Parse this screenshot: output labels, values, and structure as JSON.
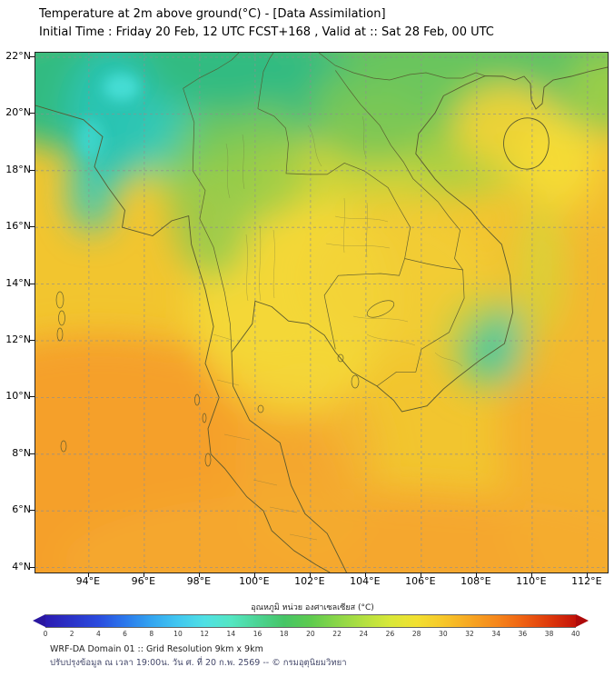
{
  "header": {
    "title": "Temperature at 2m above ground(°C) - [Data Assimilation]",
    "subtitle": "Initial Time : Friday 20 Feb, 12 UTC FCST+168 , Valid at :: Sat 28 Feb, 00 UTC"
  },
  "map": {
    "lat_ticks": [
      "22°N",
      "20°N",
      "18°N",
      "16°N",
      "14°N",
      "12°N",
      "10°N",
      "8°N",
      "6°N",
      "4°N"
    ],
    "lon_ticks": [
      "94°E",
      "96°E",
      "98°E",
      "100°E",
      "102°E",
      "104°E",
      "106°E",
      "108°E",
      "110°E",
      "112°E"
    ]
  },
  "colorbar": {
    "label": "อุณหภูมิ หน่วย องศาเซลเซียส (°C)",
    "ticks": [
      "0",
      "2",
      "4",
      "6",
      "8",
      "10",
      "12",
      "14",
      "16",
      "18",
      "20",
      "22",
      "24",
      "26",
      "28",
      "30",
      "32",
      "34",
      "36",
      "38",
      "40"
    ],
    "min": 0,
    "max": 40,
    "under_color": "#2A17A0",
    "over_color": "#AE0A0A",
    "stops": [
      {
        "value": 0,
        "color": "#2B1BB2"
      },
      {
        "value": 4,
        "color": "#2A4BDE"
      },
      {
        "value": 6,
        "color": "#2B78EC"
      },
      {
        "value": 8,
        "color": "#33A5F0"
      },
      {
        "value": 10,
        "color": "#41C7F0"
      },
      {
        "value": 12,
        "color": "#4FE0E4"
      },
      {
        "value": 14,
        "color": "#53E6C2"
      },
      {
        "value": 16,
        "color": "#4CD494"
      },
      {
        "value": 18,
        "color": "#46C566"
      },
      {
        "value": 20,
        "color": "#5ECB4F"
      },
      {
        "value": 22,
        "color": "#8AD648"
      },
      {
        "value": 24,
        "color": "#B3E040"
      },
      {
        "value": 26,
        "color": "#D9E838"
      },
      {
        "value": 28,
        "color": "#F2E030"
      },
      {
        "value": 30,
        "color": "#F7C729"
      },
      {
        "value": 32,
        "color": "#F7A722"
      },
      {
        "value": 34,
        "color": "#F6871B"
      },
      {
        "value": 36,
        "color": "#EF6112"
      },
      {
        "value": 38,
        "color": "#DE390B"
      },
      {
        "value": 40,
        "color": "#C41208"
      }
    ]
  },
  "footer": {
    "line1": "WRF-DA Domain 01 :: Grid Resolution 9km x 9km",
    "line2": "ปรับปรุงข้อมูล ณ เวลา 19:00น. วัน ศ. ที่ 20 ก.พ. 2569 -- © กรมอุตุนิยมวิทยา"
  },
  "chart_data": {
    "type": "heatmap",
    "title": "Temperature at 2m above ground (°C) - [Data Assimilation]",
    "colorbar_label": "อุณหภูมิ หน่วย องศาเซลเซียส (°C)",
    "x_ticks": [
      "94°E",
      "96°E",
      "98°E",
      "100°E",
      "102°E",
      "104°E",
      "106°E",
      "108°E",
      "110°E",
      "112°E"
    ],
    "y_ticks": [
      "22°N",
      "20°N",
      "18°N",
      "16°N",
      "14°N",
      "12°N",
      "10°N",
      "8°N",
      "6°N",
      "4°N"
    ],
    "scale_range": [
      0,
      40
    ],
    "scale_step": 2,
    "regions": [
      {
        "area": "Far northern mountains (Myanmar, 19-22N / 93-97E)",
        "approx_temp_c": "14-18"
      },
      {
        "area": "Northern band (N Thailand, N Laos, N Vietnam, 19-22N)",
        "approx_temp_c": "20-24"
      },
      {
        "area": "Transition band (~17-19N)",
        "approx_temp_c": "24-26"
      },
      {
        "area": "Central Thailand / Indochina plains",
        "approx_temp_c": "28-30"
      },
      {
        "area": "Vietnam central highlands spot (~12N 108E)",
        "approx_temp_c": "16-20"
      },
      {
        "area": "Andaman Sea / Gulf of Thailand / southern seas",
        "approx_temp_c": "30-32"
      }
    ]
  }
}
